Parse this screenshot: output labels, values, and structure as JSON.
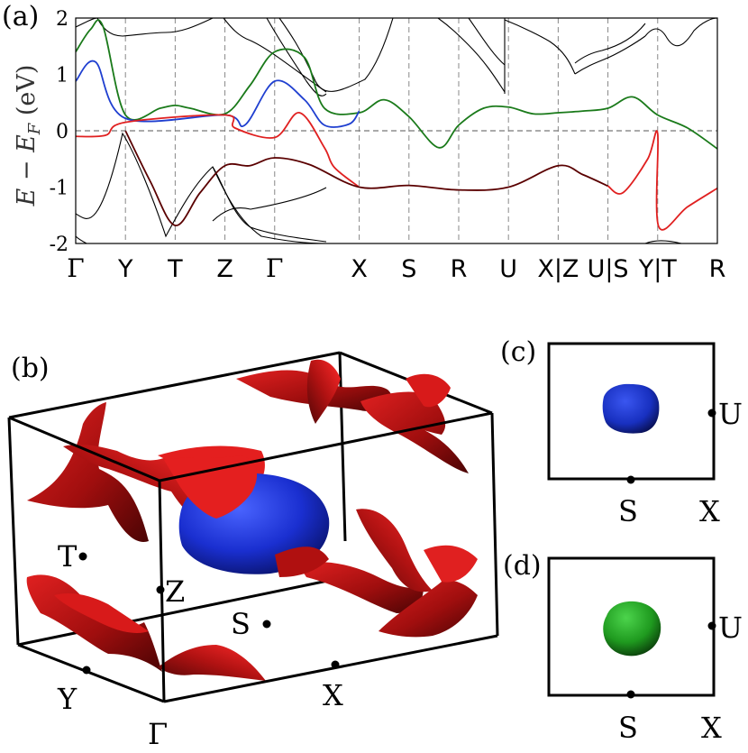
{
  "panels": {
    "a": "(a)",
    "b": "(b)",
    "c": "(c)",
    "d": "(d)"
  },
  "chart_data": {
    "type": "line",
    "ylabel": "E − E_F (eV)",
    "ylabel_main": "E − E",
    "ylabel_sub": "F",
    "ylabel_unit": "(eV)",
    "ylim": [
      -2,
      2
    ],
    "yticks": [
      "2",
      "1",
      "0",
      "-1",
      "-2"
    ],
    "xticks": [
      "Γ",
      "Y",
      "T",
      "Z",
      "Γ",
      "X",
      "S",
      "R",
      "U",
      "X|Z",
      "U|S",
      "Y|T",
      "R"
    ],
    "xtick_positions": [
      0,
      1,
      2,
      3,
      4,
      5.7,
      6.7,
      7.7,
      8.7,
      9.7,
      10.7,
      11.7,
      12.9
    ],
    "fermi_level": 0,
    "grid": "dashed vertical at high-symmetry points",
    "colors": {
      "black": "#000000",
      "green": "#1a7a1a",
      "blue": "#1f3fd0",
      "red": "#e02020",
      "darkred": "#5a0000"
    },
    "series": [
      {
        "color": "green",
        "x": [
          0,
          0.3,
          0.55,
          1,
          1.7,
          2,
          2.3,
          3,
          3.5,
          4,
          4.6,
          5,
          5.7,
          6.2,
          6.7,
          7.3,
          7.7,
          8.2,
          8.7,
          9.2,
          9.7,
          10.2,
          10.7,
          11.2,
          11.7,
          12.3,
          12.9
        ],
        "y": [
          1.4,
          1.8,
          1.85,
          0.28,
          0.4,
          0.45,
          0.4,
          0.3,
          0.8,
          1.4,
          1.3,
          0.4,
          0.32,
          0.55,
          0.25,
          -0.3,
          0.1,
          0.4,
          0.42,
          0.3,
          0.32,
          0.35,
          0.4,
          0.6,
          0.28,
          0.05,
          -0.32
        ]
      },
      {
        "color": "blue",
        "x": [
          0,
          0.4,
          1,
          3,
          3.4,
          4,
          4.6,
          5,
          5.5,
          5.7
        ],
        "y": [
          0.88,
          1.22,
          0.22,
          0.28,
          0.1,
          0.88,
          0.55,
          0.1,
          0.12,
          0.35
        ]
      },
      {
        "color": "red",
        "x": [
          0,
          0.6,
          1,
          3,
          3.2,
          4,
          4.5,
          5,
          5.2,
          5.7
        ],
        "y": [
          -0.1,
          -0.08,
          0.15,
          0.28,
          0.05,
          -0.12,
          0.32,
          -0.3,
          -0.65,
          -1.0
        ]
      },
      {
        "color": "darkred",
        "x": [
          1,
          1.5,
          2,
          2.5,
          3,
          3.5,
          4,
          4.7,
          5.7,
          6.7,
          7.7,
          8.7,
          9.7,
          10.2,
          10.7
        ],
        "y": [
          0.0,
          -0.9,
          -1.68,
          -1.1,
          -0.62,
          -0.62,
          -0.48,
          -0.6,
          -1.0,
          -0.97,
          -1.05,
          -1.0,
          -0.62,
          -0.78,
          -0.98
        ]
      },
      {
        "color": "red",
        "x": [
          10.7,
          11.0,
          11.5,
          11.7,
          11.72,
          12.3,
          12.9
        ],
        "y": [
          -0.98,
          -1.1,
          -0.5,
          -0.05,
          -1.7,
          -1.35,
          -1.02
        ]
      }
    ]
  },
  "bz3d": {
    "points": [
      "Γ",
      "Y",
      "T",
      "Z",
      "S",
      "X"
    ]
  },
  "bz2d_c": {
    "points": [
      "S",
      "X",
      "U"
    ],
    "pocket_color": "#1a2fc8"
  },
  "bz2d_d": {
    "points": [
      "S",
      "X",
      "U"
    ],
    "pocket_color": "#1f9a1f"
  },
  "surface_colors": {
    "electron_pocket": "#1a2fd8",
    "hole_surface": "#b01010"
  }
}
